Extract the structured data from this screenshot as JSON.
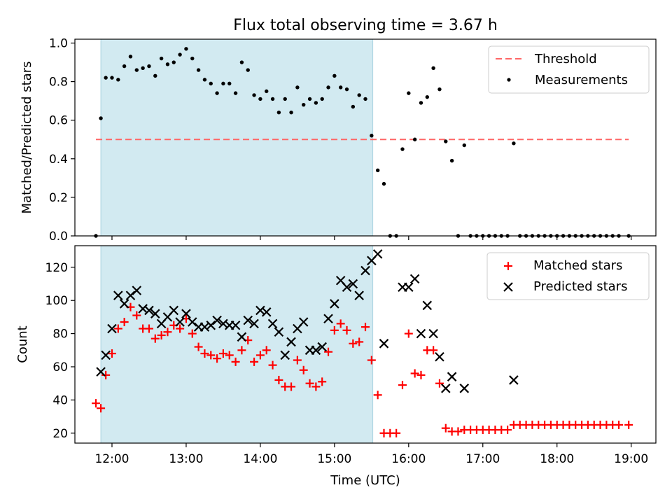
{
  "title": "Flux total observing time = 3.67 h",
  "chart_data": [
    {
      "type": "scatter",
      "ylabel": "Matched/Predicted stars",
      "ylim": [
        0,
        1.02
      ],
      "yticks": [
        "0.0",
        "0.2",
        "0.4",
        "0.6",
        "0.8",
        "1.0"
      ],
      "ytick_values": [
        0,
        0.2,
        0.4,
        0.6,
        0.8,
        1.0
      ],
      "xlim": [
        "11:30",
        "19:20"
      ],
      "shaded_span": [
        "11:51",
        "15:31"
      ],
      "shaded_color": "#add8e6",
      "legend": {
        "placement": "top-right",
        "threshold_label": "Threshold",
        "measurements_label": "Measurements"
      },
      "threshold": {
        "name": "Threshold",
        "y": 0.5,
        "x_range": [
          "11:47",
          "18:58"
        ],
        "color": "#ff6666"
      },
      "series": [
        {
          "name": "Measurements",
          "marker": "dot",
          "color": "#000000",
          "points": [
            [
              "11:47",
              0.0
            ],
            [
              "11:51",
              0.61
            ],
            [
              "11:55",
              0.82
            ],
            [
              "12:00",
              0.82
            ],
            [
              "12:05",
              0.81
            ],
            [
              "12:10",
              0.88
            ],
            [
              "12:15",
              0.93
            ],
            [
              "12:20",
              0.86
            ],
            [
              "12:25",
              0.87
            ],
            [
              "12:30",
              0.88
            ],
            [
              "12:35",
              0.83
            ],
            [
              "12:40",
              0.92
            ],
            [
              "12:45",
              0.89
            ],
            [
              "12:50",
              0.9
            ],
            [
              "12:55",
              0.94
            ],
            [
              "13:00",
              0.97
            ],
            [
              "13:05",
              0.92
            ],
            [
              "13:10",
              0.86
            ],
            [
              "13:15",
              0.81
            ],
            [
              "13:20",
              0.79
            ],
            [
              "13:25",
              0.74
            ],
            [
              "13:30",
              0.79
            ],
            [
              "13:35",
              0.79
            ],
            [
              "13:40",
              0.74
            ],
            [
              "13:45",
              0.9
            ],
            [
              "13:50",
              0.86
            ],
            [
              "13:55",
              0.73
            ],
            [
              "14:00",
              0.71
            ],
            [
              "14:05",
              0.75
            ],
            [
              "14:10",
              0.71
            ],
            [
              "14:15",
              0.64
            ],
            [
              "14:20",
              0.71
            ],
            [
              "14:25",
              0.64
            ],
            [
              "14:30",
              0.77
            ],
            [
              "14:35",
              0.68
            ],
            [
              "14:40",
              0.71
            ],
            [
              "14:45",
              0.69
            ],
            [
              "14:50",
              0.71
            ],
            [
              "14:55",
              0.77
            ],
            [
              "15:00",
              0.83
            ],
            [
              "15:05",
              0.77
            ],
            [
              "15:10",
              0.76
            ],
            [
              "15:15",
              0.67
            ],
            [
              "15:20",
              0.73
            ],
            [
              "15:25",
              0.71
            ],
            [
              "15:30",
              0.52
            ],
            [
              "15:35",
              0.34
            ],
            [
              "15:40",
              0.27
            ],
            [
              "15:45",
              0.0
            ],
            [
              "15:50",
              0.0
            ],
            [
              "15:55",
              0.45
            ],
            [
              "16:00",
              0.74
            ],
            [
              "16:05",
              0.5
            ],
            [
              "16:10",
              0.69
            ],
            [
              "16:15",
              0.72
            ],
            [
              "16:20",
              0.87
            ],
            [
              "16:25",
              0.76
            ],
            [
              "16:30",
              0.49
            ],
            [
              "16:35",
              0.39
            ],
            [
              "16:40",
              0.0
            ],
            [
              "16:45",
              0.47
            ],
            [
              "16:50",
              0.0
            ],
            [
              "16:55",
              0.0
            ],
            [
              "17:00",
              0.0
            ],
            [
              "17:05",
              0.0
            ],
            [
              "17:10",
              0.0
            ],
            [
              "17:15",
              0.0
            ],
            [
              "17:20",
              0.0
            ],
            [
              "17:25",
              0.48
            ],
            [
              "17:30",
              0.0
            ],
            [
              "17:35",
              0.0
            ],
            [
              "17:40",
              0.0
            ],
            [
              "17:45",
              0.0
            ],
            [
              "17:50",
              0.0
            ],
            [
              "17:55",
              0.0
            ],
            [
              "18:00",
              0.0
            ],
            [
              "18:05",
              0.0
            ],
            [
              "18:10",
              0.0
            ],
            [
              "18:15",
              0.0
            ],
            [
              "18:20",
              0.0
            ],
            [
              "18:25",
              0.0
            ],
            [
              "18:30",
              0.0
            ],
            [
              "18:35",
              0.0
            ],
            [
              "18:40",
              0.0
            ],
            [
              "18:45",
              0.0
            ],
            [
              "18:50",
              0.0
            ],
            [
              "18:58",
              0.0
            ]
          ]
        }
      ]
    },
    {
      "type": "scatter",
      "xlabel": "Time (UTC)",
      "ylabel": "Count",
      "ylim": [
        14,
        133
      ],
      "yticks": [
        "20",
        "40",
        "60",
        "80",
        "100",
        "120"
      ],
      "ytick_values": [
        20,
        40,
        60,
        80,
        100,
        120
      ],
      "xlim": [
        "11:30",
        "19:20"
      ],
      "xticks": [
        "12:00",
        "13:00",
        "14:00",
        "15:00",
        "16:00",
        "17:00",
        "18:00",
        "19:00"
      ],
      "shaded_span": [
        "11:51",
        "15:31"
      ],
      "shaded_color": "#add8e6",
      "legend": {
        "placement": "top-right",
        "matched_label": "Matched stars",
        "predicted_label": "Predicted stars"
      },
      "series": [
        {
          "name": "Matched stars",
          "marker": "plus",
          "color": "#ff0000",
          "points": [
            [
              "11:47",
              38
            ],
            [
              "11:51",
              35
            ],
            [
              "11:55",
              55
            ],
            [
              "12:00",
              68
            ],
            [
              "12:05",
              83
            ],
            [
              "12:10",
              87
            ],
            [
              "12:15",
              96
            ],
            [
              "12:20",
              91
            ],
            [
              "12:25",
              83
            ],
            [
              "12:30",
              83
            ],
            [
              "12:35",
              77
            ],
            [
              "12:40",
              79
            ],
            [
              "12:45",
              81
            ],
            [
              "12:50",
              85
            ],
            [
              "12:55",
              83
            ],
            [
              "13:00",
              89
            ],
            [
              "13:05",
              80
            ],
            [
              "13:10",
              72
            ],
            [
              "13:15",
              68
            ],
            [
              "13:20",
              67
            ],
            [
              "13:25",
              65
            ],
            [
              "13:30",
              68
            ],
            [
              "13:35",
              67
            ],
            [
              "13:40",
              63
            ],
            [
              "13:45",
              70
            ],
            [
              "13:50",
              76
            ],
            [
              "13:55",
              63
            ],
            [
              "14:00",
              67
            ],
            [
              "14:05",
              70
            ],
            [
              "14:10",
              61
            ],
            [
              "14:15",
              52
            ],
            [
              "14:20",
              48
            ],
            [
              "14:25",
              48
            ],
            [
              "14:30",
              64
            ],
            [
              "14:35",
              58
            ],
            [
              "14:40",
              50
            ],
            [
              "14:45",
              48
            ],
            [
              "14:50",
              51
            ],
            [
              "14:55",
              69
            ],
            [
              "15:00",
              82
            ],
            [
              "15:05",
              86
            ],
            [
              "15:10",
              82
            ],
            [
              "15:15",
              74
            ],
            [
              "15:20",
              75
            ],
            [
              "15:25",
              84
            ],
            [
              "15:30",
              64
            ],
            [
              "15:35",
              43
            ],
            [
              "15:40",
              20
            ],
            [
              "15:45",
              20
            ],
            [
              "15:50",
              20
            ],
            [
              "15:55",
              49
            ],
            [
              "16:00",
              80
            ],
            [
              "16:05",
              56
            ],
            [
              "16:10",
              55
            ],
            [
              "16:15",
              70
            ],
            [
              "16:20",
              70
            ],
            [
              "16:25",
              50
            ],
            [
              "16:30",
              23
            ],
            [
              "16:35",
              21
            ],
            [
              "16:40",
              21
            ],
            [
              "16:45",
              22
            ],
            [
              "16:50",
              22
            ],
            [
              "16:55",
              22
            ],
            [
              "17:00",
              22
            ],
            [
              "17:05",
              22
            ],
            [
              "17:10",
              22
            ],
            [
              "17:15",
              22
            ],
            [
              "17:20",
              22
            ],
            [
              "17:25",
              25
            ],
            [
              "17:30",
              25
            ],
            [
              "17:35",
              25
            ],
            [
              "17:40",
              25
            ],
            [
              "17:45",
              25
            ],
            [
              "17:50",
              25
            ],
            [
              "17:55",
              25
            ],
            [
              "18:00",
              25
            ],
            [
              "18:05",
              25
            ],
            [
              "18:10",
              25
            ],
            [
              "18:15",
              25
            ],
            [
              "18:20",
              25
            ],
            [
              "18:25",
              25
            ],
            [
              "18:30",
              25
            ],
            [
              "18:35",
              25
            ],
            [
              "18:40",
              25
            ],
            [
              "18:45",
              25
            ],
            [
              "18:50",
              25
            ],
            [
              "18:58",
              25
            ]
          ]
        },
        {
          "name": "Predicted stars",
          "marker": "x",
          "color": "#000000",
          "points": [
            [
              "11:51",
              57
            ],
            [
              "11:55",
              67
            ],
            [
              "12:00",
              83
            ],
            [
              "12:05",
              103
            ],
            [
              "12:10",
              98
            ],
            [
              "12:15",
              103
            ],
            [
              "12:20",
              106
            ],
            [
              "12:25",
              95
            ],
            [
              "12:30",
              94
            ],
            [
              "12:35",
              92
            ],
            [
              "12:40",
              86
            ],
            [
              "12:45",
              90
            ],
            [
              "12:50",
              94
            ],
            [
              "12:55",
              87
            ],
            [
              "13:00",
              92
            ],
            [
              "13:05",
              87
            ],
            [
              "13:10",
              84
            ],
            [
              "13:15",
              84
            ],
            [
              "13:20",
              85
            ],
            [
              "13:25",
              88
            ],
            [
              "13:30",
              86
            ],
            [
              "13:35",
              85
            ],
            [
              "13:40",
              85
            ],
            [
              "13:45",
              78
            ],
            [
              "13:50",
              88
            ],
            [
              "13:55",
              86
            ],
            [
              "14:00",
              94
            ],
            [
              "14:05",
              93
            ],
            [
              "14:10",
              86
            ],
            [
              "14:15",
              81
            ],
            [
              "14:20",
              67
            ],
            [
              "14:25",
              75
            ],
            [
              "14:30",
              83
            ],
            [
              "14:35",
              87
            ],
            [
              "14:40",
              70
            ],
            [
              "14:45",
              70
            ],
            [
              "14:50",
              72
            ],
            [
              "14:55",
              89
            ],
            [
              "15:00",
              98
            ],
            [
              "15:05",
              112
            ],
            [
              "15:10",
              108
            ],
            [
              "15:15",
              110
            ],
            [
              "15:20",
              103
            ],
            [
              "15:25",
              118
            ],
            [
              "15:30",
              124
            ],
            [
              "15:35",
              128
            ],
            [
              "15:40",
              74
            ],
            [
              "15:55",
              108
            ],
            [
              "16:00",
              108
            ],
            [
              "16:05",
              113
            ],
            [
              "16:10",
              80
            ],
            [
              "16:15",
              97
            ],
            [
              "16:20",
              80
            ],
            [
              "16:25",
              66
            ],
            [
              "16:30",
              47
            ],
            [
              "16:35",
              54
            ],
            [
              "16:45",
              47
            ],
            [
              "17:25",
              52
            ]
          ]
        }
      ]
    }
  ]
}
